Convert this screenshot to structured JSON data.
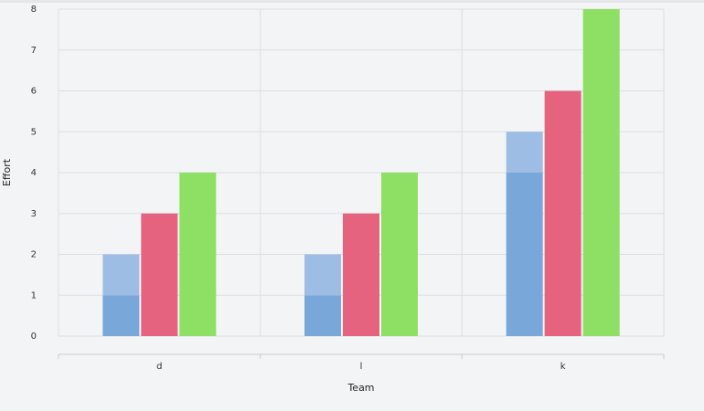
{
  "chart_data": {
    "type": "bar",
    "x_label": "Team",
    "y_label": "Effort",
    "categories": [
      "d",
      "l",
      "k"
    ],
    "series": [
      {
        "color": "#7aa7da",
        "values": [
          1,
          1,
          4
        ]
      },
      {
        "color": "#9dbde5",
        "values": [
          1,
          1,
          1
        ],
        "stack": true
      },
      {
        "color": "#e5637f",
        "values": [
          3,
          3,
          6
        ]
      },
      {
        "color": "#8de064",
        "values": [
          4,
          4,
          8
        ]
      }
    ],
    "ylim": [
      0,
      8
    ],
    "yticks": [
      0,
      1,
      2,
      3,
      4,
      5,
      6,
      7,
      8
    ],
    "grid": true
  }
}
